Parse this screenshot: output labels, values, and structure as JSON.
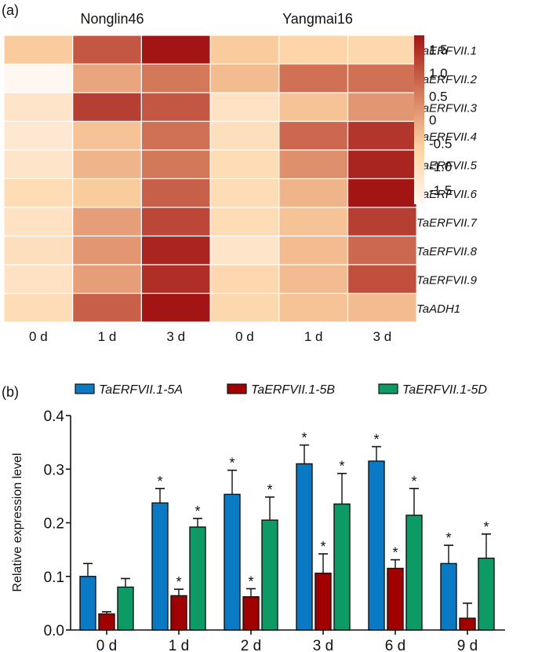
{
  "chart_data": [
    {
      "type": "heatmap",
      "panel_label": "(a)",
      "group_labels": [
        "Nonglin46",
        "Yangmai16"
      ],
      "columns": [
        "0 d",
        "1 d",
        "3 d",
        "0 d",
        "1 d",
        "3 d"
      ],
      "rows": [
        "TaERFVII.1",
        "TaERFVII.2",
        "TaERFVII.3",
        "TaERFVII.4",
        "TaERFVII.5",
        "TaERFVII.6",
        "TaERFVII.7",
        "TaERFVII.8",
        "TaERFVII.9",
        "TaADH1"
      ],
      "values": [
        [
          -0.5,
          1.0,
          1.8,
          -0.5,
          -0.7,
          -0.8
        ],
        [
          -1.8,
          0.0,
          0.6,
          -0.3,
          0.7,
          0.7
        ],
        [
          -1.2,
          1.3,
          1.0,
          -1.1,
          -0.4,
          0.2
        ],
        [
          -1.3,
          -0.4,
          0.7,
          -1.0,
          0.8,
          1.4
        ],
        [
          -1.2,
          -0.2,
          0.6,
          -0.9,
          0.3,
          1.6
        ],
        [
          -0.9,
          -0.5,
          0.9,
          -0.9,
          -0.2,
          1.8
        ],
        [
          -1.1,
          0.1,
          1.2,
          -0.9,
          -0.4,
          1.3
        ],
        [
          -1.0,
          0.2,
          1.6,
          -1.2,
          -0.3,
          0.8
        ],
        [
          -1.1,
          0.1,
          1.5,
          -0.8,
          -0.3,
          1.1
        ],
        [
          -0.9,
          0.9,
          1.8,
          -0.8,
          -0.4,
          -0.3
        ]
      ],
      "colorbar": {
        "min": -1.8,
        "max": 1.8,
        "ticks": [
          "1.5",
          "1.0",
          "0.5",
          "0",
          "-0.5",
          "-1.0",
          "-1.5"
        ],
        "tick_values": [
          1.5,
          1.0,
          0.5,
          0,
          -0.5,
          -1.0,
          -1.5
        ],
        "colors": [
          "#fff8f2",
          "#fdd2a2",
          "#d4785a",
          "#a31515"
        ]
      }
    },
    {
      "type": "bar",
      "panel_label": "(b)",
      "categories": [
        "0 d",
        "1 d",
        "2 d",
        "3 d",
        "6 d",
        "9 d"
      ],
      "ylabel": "Relative expression level",
      "xlabel": "",
      "ylim": [
        0,
        0.4
      ],
      "yticks": [
        "0.0",
        "0.1",
        "0.2",
        "0.3",
        "0.4"
      ],
      "ytick_values": [
        0,
        0.1,
        0.2,
        0.3,
        0.4
      ],
      "legend_position": "top",
      "series": [
        {
          "name": "TaERFVII.1-5A",
          "color": "#0a7ac4",
          "values": [
            0.1,
            0.237,
            0.253,
            0.31,
            0.315,
            0.124
          ],
          "errors": [
            0.024,
            0.027,
            0.045,
            0.035,
            0.027,
            0.034
          ],
          "significant": [
            false,
            true,
            true,
            true,
            true,
            true
          ]
        },
        {
          "name": "TaERFVII.1-5B",
          "color": "#a00000",
          "values": [
            0.03,
            0.064,
            0.062,
            0.106,
            0.115,
            0.022
          ],
          "errors": [
            0.004,
            0.012,
            0.015,
            0.036,
            0.016,
            0.028
          ],
          "significant": [
            false,
            true,
            true,
            true,
            true,
            false
          ]
        },
        {
          "name": "TaERFVII.1-5D",
          "color": "#0e9a64",
          "values": [
            0.08,
            0.192,
            0.205,
            0.235,
            0.214,
            0.134
          ],
          "errors": [
            0.016,
            0.016,
            0.043,
            0.057,
            0.05,
            0.045
          ],
          "significant": [
            false,
            true,
            true,
            true,
            true,
            true
          ]
        }
      ],
      "significance_marker": "*"
    }
  ]
}
